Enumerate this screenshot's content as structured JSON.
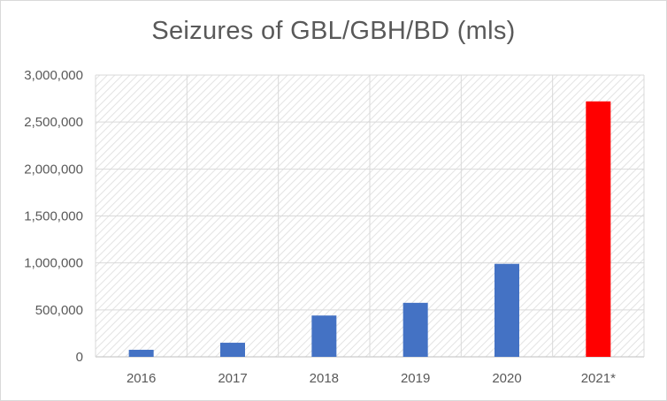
{
  "chart_data": {
    "type": "bar",
    "title": "Seizures of GBL/GBH/BD (mls)",
    "xlabel": "",
    "ylabel": "",
    "categories": [
      "2016",
      "2017",
      "2018",
      "2019",
      "2020",
      "2021*"
    ],
    "values": [
      75000,
      150000,
      440000,
      575000,
      990000,
      2720000
    ],
    "bar_colors": [
      "#4472c4",
      "#4472c4",
      "#4472c4",
      "#4472c4",
      "#4472c4",
      "#ff0000"
    ],
    "ylim": [
      0,
      3000000
    ],
    "y_ticks": [
      0,
      500000,
      1000000,
      1500000,
      2000000,
      2500000,
      3000000
    ],
    "y_tick_labels": [
      "0",
      "500,000",
      "1,000,000",
      "1,500,000",
      "2,000,000",
      "2,500,000",
      "3,000,000"
    ],
    "grid": true,
    "legend": "none"
  },
  "colors": {
    "gridline": "#d9d9d9",
    "axis": "#bfbfbf",
    "text": "#595959",
    "hatch": "#e6e6e6"
  }
}
